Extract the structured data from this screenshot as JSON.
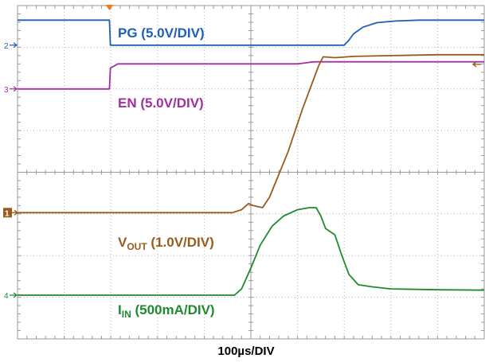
{
  "chart_data": {
    "type": "line",
    "title": "",
    "xlabel": "100µs/DIV",
    "ylabel": "",
    "x_unit": "µs",
    "divisions": {
      "x": 10,
      "y": 8
    },
    "xlim": [
      0,
      1000
    ],
    "ylim_div": [
      0,
      8
    ],
    "grid": true,
    "series": [
      {
        "key": "pg",
        "label_main": "PG",
        "label_sub": "",
        "label_suffix": " (5.0V/DIV)",
        "color": "#1f5fb8",
        "marker": "2",
        "marker_level_div": 7.05,
        "x": [
          0,
          197,
          199,
          300,
          400,
          700,
          710,
          720,
          740,
          770,
          810,
          860,
          1000
        ],
        "y": [
          7.65,
          7.65,
          7.05,
          7.05,
          7.05,
          7.05,
          7.17,
          7.32,
          7.48,
          7.59,
          7.63,
          7.65,
          7.65
        ]
      },
      {
        "key": "en",
        "label_main": "EN",
        "label_sub": "",
        "label_suffix": " (5.0V/DIV)",
        "color": "#a0309f",
        "marker": "3",
        "marker_level_div": 6.0,
        "x": [
          0,
          197,
          199,
          215,
          400,
          600,
          635,
          800,
          1000
        ],
        "y": [
          6.0,
          6.0,
          6.5,
          6.6,
          6.6,
          6.6,
          6.65,
          6.65,
          6.65
        ]
      },
      {
        "key": "vout",
        "label_main": "V",
        "label_sub": "OUT",
        "label_suffix": " (1.0V/DIV)",
        "color": "#9a5a1c",
        "marker": "1",
        "marker_level_div": 3.03,
        "x": [
          0,
          460,
          480,
          495,
          505,
          525,
          540,
          580,
          610,
          630,
          645,
          655,
          680,
          720,
          800,
          900,
          1000
        ],
        "y": [
          3.03,
          3.03,
          3.1,
          3.25,
          3.2,
          3.15,
          3.4,
          4.5,
          5.5,
          6.1,
          6.55,
          6.77,
          6.75,
          6.78,
          6.8,
          6.82,
          6.82
        ]
      },
      {
        "key": "iin",
        "label_main": "I",
        "label_sub": "IN",
        "label_suffix": " (500mA/DIV)",
        "color": "#1f8a2e",
        "marker": "4",
        "marker_level_div": 1.05,
        "x": [
          0,
          465,
          480,
          500,
          520,
          545,
          570,
          600,
          625,
          640,
          650,
          660,
          680,
          695,
          710,
          730,
          760,
          800,
          900,
          1000
        ],
        "y": [
          1.05,
          1.05,
          1.2,
          1.7,
          2.25,
          2.7,
          2.95,
          3.1,
          3.15,
          3.15,
          2.95,
          2.65,
          2.5,
          2.0,
          1.55,
          1.3,
          1.25,
          1.2,
          1.18,
          1.17
        ]
      }
    ],
    "trigger_marker_x": 197
  }
}
